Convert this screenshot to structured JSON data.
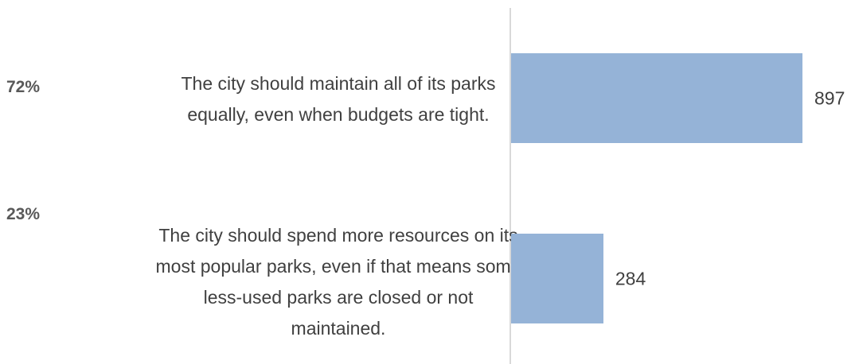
{
  "chart_data": {
    "type": "bar",
    "orientation": "horizontal",
    "categories": [
      "The city should maintain all of its parks equally, even when budgets are tight.",
      "The city should spend more resources on its most popular parks, even if that means some less-used parks are closed or not maintained."
    ],
    "values": [
      897,
      284
    ],
    "shares": [
      72,
      23
    ],
    "share_labels": [
      "72%",
      "23%"
    ],
    "color": "#95b3d7"
  }
}
